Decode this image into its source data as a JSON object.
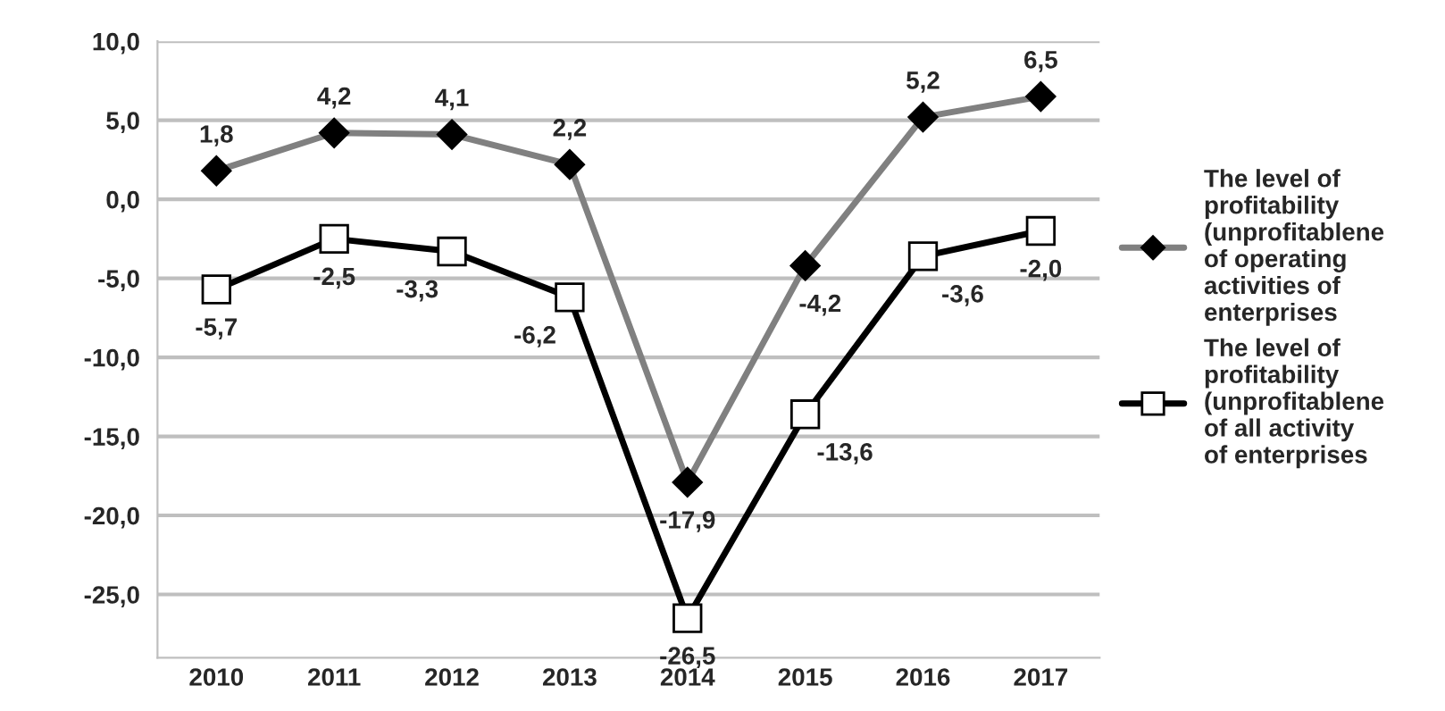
{
  "chart_data": {
    "type": "line",
    "categories": [
      "2010",
      "2011",
      "2012",
      "2013",
      "2014",
      "2015",
      "2016",
      "2017"
    ],
    "series": [
      {
        "name": "The level of profitability (unprofitablene of operating activities of enterprises",
        "color": "#808080",
        "marker": "diamond",
        "values": [
          1.8,
          4.2,
          4.1,
          2.2,
          -17.9,
          -4.2,
          5.2,
          6.5
        ],
        "value_labels": [
          "1,8",
          "4,2",
          "4,1",
          "2,2",
          "-17,9",
          "-4,2",
          "5,2",
          "6,5"
        ]
      },
      {
        "name": "The level of profitability (unprofitablene of all activity of enterprises",
        "color": "#000000",
        "marker": "square",
        "values": [
          -5.7,
          -2.5,
          -3.3,
          -6.2,
          -26.5,
          -13.6,
          -3.6,
          -2.0
        ],
        "value_labels": [
          "-5,7",
          "-2,5",
          "-3,3",
          "-6,2",
          "-26,5",
          "-13,6",
          "-3,6",
          "-2,0"
        ]
      }
    ],
    "ylim": [
      -29,
      10
    ],
    "yticks": [
      {
        "value": 10,
        "label": "10,0"
      },
      {
        "value": 5,
        "label": "5,0"
      },
      {
        "value": 0,
        "label": "0,0"
      },
      {
        "value": -5,
        "label": "-5,0"
      },
      {
        "value": -10,
        "label": "-10,0"
      },
      {
        "value": -15,
        "label": "-15,0"
      },
      {
        "value": -20,
        "label": "-20,0"
      },
      {
        "value": -25,
        "label": "-25,0"
      }
    ],
    "grid": "y",
    "legend": "right",
    "line_style": "solid"
  }
}
